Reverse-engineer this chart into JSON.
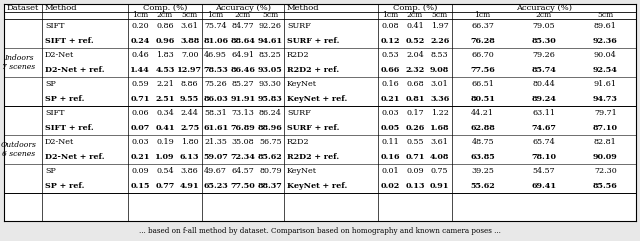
{
  "sections": [
    {
      "label": "Indoors\n7 scenes",
      "groups": [
        {
          "rows": [
            [
              "SIFT",
              "0.20",
              "0.86",
              "3.61",
              "75.74",
              "84.77",
              "92.26",
              "SURF",
              "0.08",
              "0.41",
              "1.97",
              "66.37",
              "79.05",
              "89.61"
            ],
            [
              "SIFT + ref.",
              "0.24",
              "0.96",
              "3.88",
              "81.06",
              "88.64",
              "94.61",
              "SURF + ref.",
              "0.12",
              "0.52",
              "2.26",
              "76.28",
              "85.30",
              "92.36"
            ]
          ]
        },
        {
          "rows": [
            [
              "D2-Net",
              "0.46",
              "1.83",
              "7.00",
              "46.95",
              "64.91",
              "83.25",
              "R2D2",
              "0.53",
              "2.04",
              "8.53",
              "66.70",
              "79.26",
              "90.04"
            ],
            [
              "D2-Net + ref.",
              "1.44",
              "4.53",
              "12.97",
              "78.53",
              "86.46",
              "93.05",
              "R2D2 + ref.",
              "0.66",
              "2.32",
              "9.08",
              "77.56",
              "85.74",
              "92.54"
            ]
          ]
        },
        {
          "rows": [
            [
              "SP",
              "0.59",
              "2.21",
              "8.86",
              "75.26",
              "85.27",
              "93.30",
              "KeyNet",
              "0.16",
              "0.68",
              "3.01",
              "66.51",
              "80.44",
              "91.61"
            ],
            [
              "SP + ref.",
              "0.71",
              "2.51",
              "9.55",
              "86.03",
              "91.91",
              "95.83",
              "KeyNet + ref.",
              "0.21",
              "0.81",
              "3.36",
              "80.51",
              "89.24",
              "94.73"
            ]
          ]
        }
      ]
    },
    {
      "label": "Outdoors\n6 scenes",
      "groups": [
        {
          "rows": [
            [
              "SIFT",
              "0.06",
              "0.34",
              "2.44",
              "58.31",
              "73.13",
              "86.24",
              "SURF",
              "0.03",
              "0.17",
              "1.22",
              "44.21",
              "63.11",
              "79.71"
            ],
            [
              "SIFT + ref.",
              "0.07",
              "0.41",
              "2.75",
              "61.61",
              "76.89",
              "88.96",
              "SURF + ref.",
              "0.05",
              "0.26",
              "1.68",
              "62.88",
              "74.67",
              "87.10"
            ]
          ]
        },
        {
          "rows": [
            [
              "D2-Net",
              "0.03",
              "0.19",
              "1.80",
              "21.35",
              "35.08",
              "56.75",
              "R2D2",
              "0.11",
              "0.55",
              "3.61",
              "48.75",
              "65.74",
              "82.81"
            ],
            [
              "D2-Net + ref.",
              "0.21",
              "1.09",
              "6.13",
              "59.07",
              "72.34",
              "85.62",
              "R2D2 + ref.",
              "0.16",
              "0.71",
              "4.08",
              "63.85",
              "78.10",
              "90.09"
            ]
          ]
        },
        {
          "rows": [
            [
              "SP",
              "0.09",
              "0.54",
              "3.86",
              "49.67",
              "64.57",
              "80.79",
              "KeyNet",
              "0.01",
              "0.09",
              "0.75",
              "39.25",
              "54.57",
              "72.30"
            ],
            [
              "SP + ref.",
              "0.15",
              "0.77",
              "4.91",
              "65.23",
              "77.50",
              "88.37",
              "KeyNet + ref.",
              "0.02",
              "0.13",
              "0.91",
              "55.62",
              "69.41",
              "85.56"
            ]
          ]
        }
      ]
    }
  ],
  "footer": "... based on f-all method by dataset. Comparison based on homography and known camera poses ...",
  "bg_color": "#e8e8e8"
}
